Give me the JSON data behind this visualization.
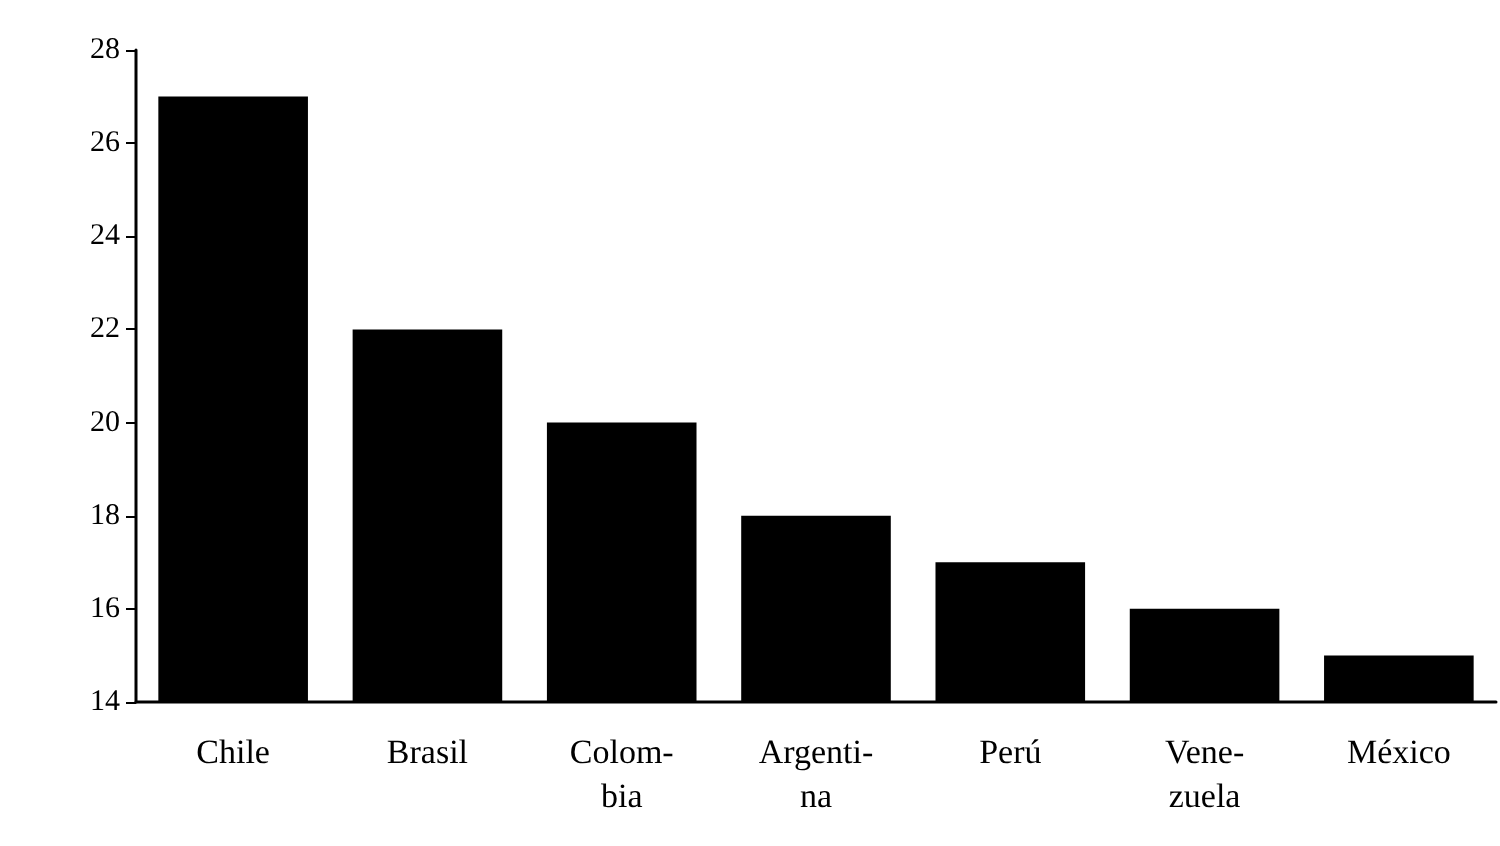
{
  "chart_data": {
    "type": "bar",
    "categories": [
      "Chile",
      "Brasil",
      "Colom-\nbia",
      "Argenti-\nna",
      "Perú",
      "Vene-\nzuela",
      "México"
    ],
    "values": [
      27,
      22,
      20,
      18,
      17,
      16,
      15
    ],
    "color": "#000000",
    "ylim": [
      14,
      28
    ],
    "yticks": [
      14,
      16,
      18,
      20,
      22,
      24,
      26,
      28
    ],
    "grid": false
  }
}
